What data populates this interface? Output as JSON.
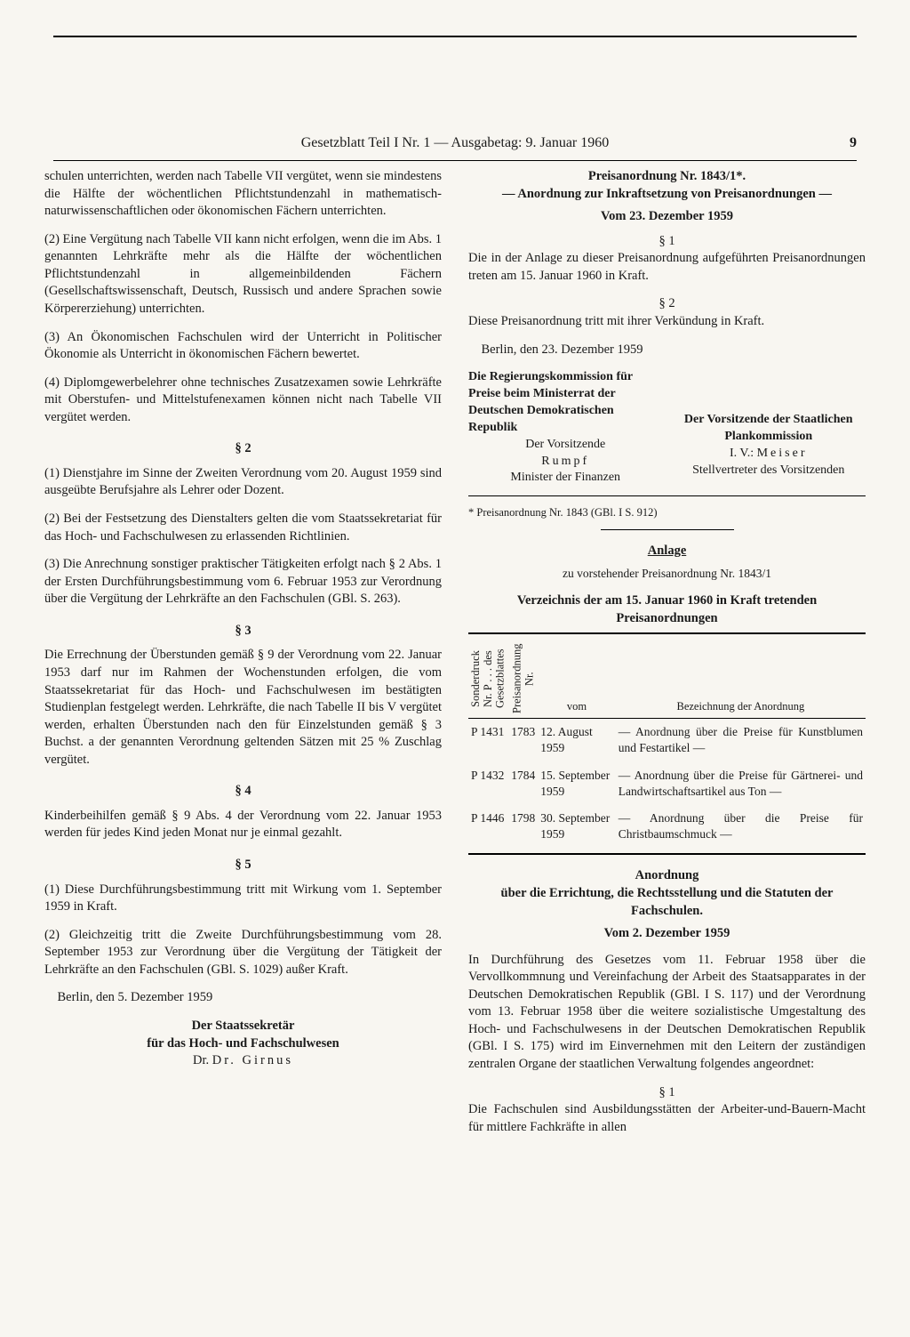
{
  "header": {
    "text": "Gesetzblatt Teil I Nr. 1 — Ausgabetag: 9. Januar 1960",
    "page_number": "9"
  },
  "left": {
    "p1": "schulen unterrichten, werden nach Tabelle VII vergütet, wenn sie mindestens die Hälfte der wöchentlichen Pflichtstundenzahl in mathematisch-naturwissenschaftlichen oder ökonomischen Fächern unterrichten.",
    "p2": "(2) Eine Vergütung nach Tabelle VII kann nicht erfolgen, wenn die im Abs. 1 genannten Lehrkräfte mehr als die Hälfte der wöchentlichen Pflichtstundenzahl in allgemeinbildenden Fächern (Gesellschaftswissenschaft, Deutsch, Russisch und andere Sprachen sowie Körpererziehung) unterrichten.",
    "p3": "(3) An Ökonomischen Fachschulen wird der Unterricht in Politischer Ökonomie als Unterricht in ökonomischen Fächern bewertet.",
    "p4": "(4) Diplomgewerbelehrer ohne technisches Zusatzexamen sowie Lehrkräfte mit Oberstufen- und Mittelstufenexamen können nicht nach Tabelle VII vergütet werden.",
    "s2": "§ 2",
    "s2p1": "(1) Dienstjahre im Sinne der Zweiten Verordnung vom 20. August 1959 sind ausgeübte Berufsjahre als Lehrer oder Dozent.",
    "s2p2": "(2) Bei der Festsetzung des Dienstalters gelten die vom Staatssekretariat für das Hoch- und Fachschulwesen zu erlassenden Richtlinien.",
    "s2p3": "(3) Die Anrechnung sonstiger praktischer Tätigkeiten erfolgt nach § 2 Abs. 1 der Ersten Durchführungsbestimmung vom 6. Februar 1953 zur Verordnung über die Vergütung der Lehrkräfte an den Fachschulen (GBl. S. 263).",
    "s3": "§ 3",
    "s3p1": "Die Errechnung der Überstunden gemäß § 9 der Verordnung vom 22. Januar 1953 darf nur im Rahmen der Wochenstunden erfolgen, die vom Staatssekretariat für das Hoch- und Fachschulwesen im bestätigten Studienplan festgelegt werden. Lehrkräfte, die nach Tabelle II bis V vergütet werden, erhalten Überstunden nach den für Einzelstunden gemäß § 3 Buchst. a der genannten Verordnung geltenden Sätzen mit 25 % Zuschlag vergütet.",
    "s4": "§ 4",
    "s4p1": "Kinderbeihilfen gemäß § 9 Abs. 4 der Verordnung vom 22. Januar 1953 werden für jedes Kind jeden Monat nur je einmal gezahlt.",
    "s5": "§ 5",
    "s5p1": "(1) Diese Durchführungsbestimmung tritt mit Wirkung vom 1. September 1959 in Kraft.",
    "s5p2": "(2) Gleichzeitig tritt die Zweite Durchführungsbestimmung vom 28. September 1953 zur Verordnung über die Vergütung der Tätigkeit der Lehrkräfte an den Fachschulen (GBl. S. 1029) außer Kraft.",
    "place_date": "Berlin, den 5. Dezember 1959",
    "sig1": "Der Staatssekretär",
    "sig2": "für das Hoch- und Fachschulwesen",
    "sig3": "Dr. Girnus"
  },
  "right": {
    "title1": "Preisanordnung Nr. 1843/1*.",
    "title2": "— Anordnung zur Inkraftsetzung von Preisanordnungen —",
    "date1": "Vom 23. Dezember 1959",
    "s1": "§ 1",
    "s1p1": "Die in der Anlage zu dieser Preisanordnung aufgeführten Preisanordnungen treten am 15. Januar 1960 in Kraft.",
    "s2": "§ 2",
    "s2p1": "Diese Preisanordnung tritt mit ihrer Verkündung in Kraft.",
    "place_date": "Berlin, den 23. Dezember 1959",
    "sigA1": "Die Regierungskommission für Preise beim Ministerrat der Deutschen Demokratischen Republik",
    "sigA2": "Der Vorsitzende",
    "sigA3": "Rumpf",
    "sigA4": "Minister der Finanzen",
    "sigB1": "Der Vorsitzende der Staatlichen Plankommission",
    "sigB2": "I. V.: Meiser",
    "sigB3": "Stellvertreter des Vorsitzenden",
    "footnote": "* Preisanordnung Nr. 1843 (GBl. I S. 912)",
    "anlage": "Anlage",
    "anlage_sub": "zu vorstehender Preisanordnung Nr. 1843/1",
    "verz_title": "Verzeichnis der am 15. Januar 1960 in Kraft tretenden Preisanordnungen",
    "th1": "Sonderdruck Nr. P . . . des Gesetzblattes",
    "th2": "Preisanordnung Nr.",
    "th3": "vom",
    "th4": "Bezeichnung der Anordnung",
    "rows": [
      {
        "c1": "P 1431",
        "c2": "1783",
        "c3": "12. August 1959",
        "c4": "— Anordnung über die Preise für Kunstblumen und Festartikel —"
      },
      {
        "c1": "P 1432",
        "c2": "1784",
        "c3": "15. September 1959",
        "c4": "— Anordnung über die Preise für Gärtnerei- und Landwirtschaftsartikel aus Ton —"
      },
      {
        "c1": "P 1446",
        "c2": "1798",
        "c3": "30. September 1959",
        "c4": "— Anordnung über die Preise für Christbaumschmuck —"
      }
    ],
    "anord_title1": "Anordnung",
    "anord_title2": "über die Errichtung, die Rechtsstellung und die Statuten der Fachschulen.",
    "anord_date": "Vom 2. Dezember 1959",
    "anord_p1": "In Durchführung des Gesetzes vom 11. Februar 1958 über die Vervollkommnung und Vereinfachung der Arbeit des Staatsapparates in der Deutschen Demokratischen Republik (GBl. I S. 117) und der Verordnung vom 13. Februar 1958 über die weitere sozialistische Umgestaltung des Hoch- und Fachschulwesens in der Deutschen Demokratischen Republik (GBl. I S. 175) wird im Einvernehmen mit den Leitern der zuständigen zentralen Organe der staatlichen Verwaltung folgendes angeordnet:",
    "anord_s1": "§ 1",
    "anord_s1p1": "Die Fachschulen sind Ausbildungsstätten der Arbeiter-und-Bauern-Macht für mittlere Fachkräfte in allen"
  }
}
